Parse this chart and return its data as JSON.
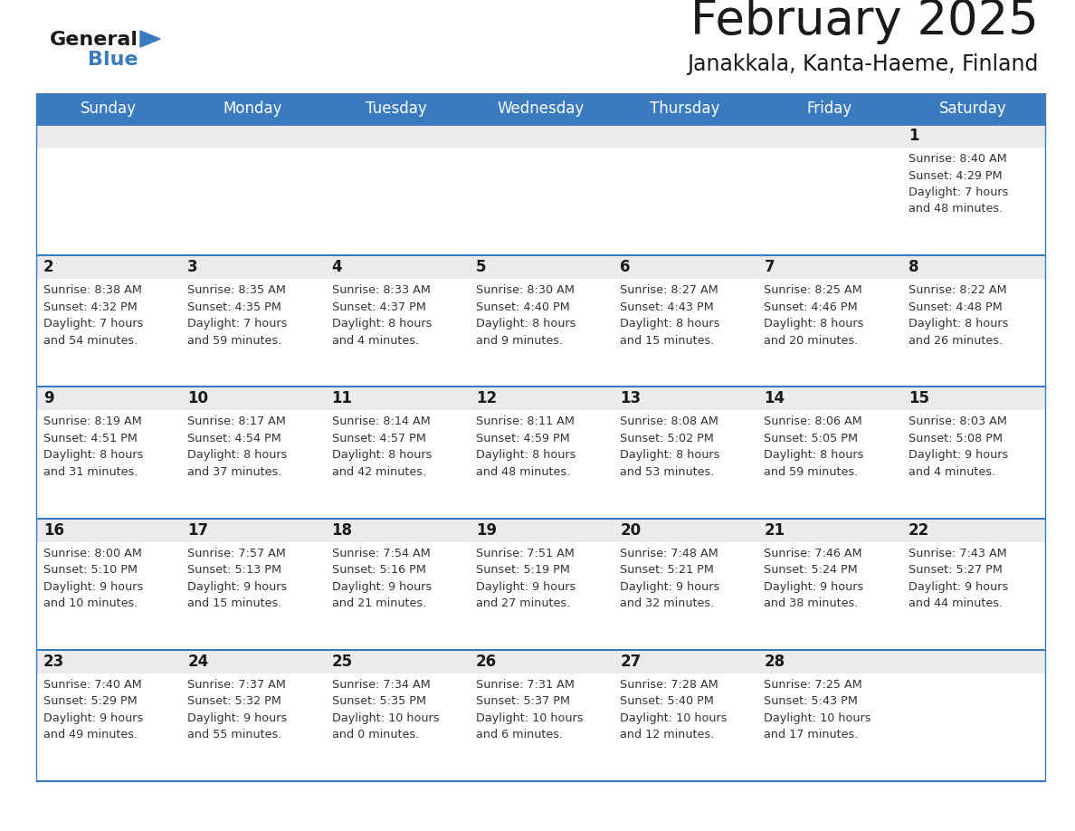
{
  "title": "February 2025",
  "subtitle": "Janakkala, Kanta-Haeme, Finland",
  "header_color": "#3a7abf",
  "header_text_color": "#ffffff",
  "day_names": [
    "Sunday",
    "Monday",
    "Tuesday",
    "Wednesday",
    "Thursday",
    "Friday",
    "Saturday"
  ],
  "title_color": "#1a1a1a",
  "subtitle_color": "#1a1a1a",
  "cell_bg_gray": "#ebebeb",
  "cell_bg_white": "#ffffff",
  "line_color": "#3a7abf",
  "day_num_color": "#1a1a1a",
  "info_color": "#333333",
  "logo_general_color": "#1a1a1a",
  "logo_blue_color": "#3a7abf",
  "weeks": [
    [
      {
        "day": null,
        "info": ""
      },
      {
        "day": null,
        "info": ""
      },
      {
        "day": null,
        "info": ""
      },
      {
        "day": null,
        "info": ""
      },
      {
        "day": null,
        "info": ""
      },
      {
        "day": null,
        "info": ""
      },
      {
        "day": 1,
        "info": "Sunrise: 8:40 AM\nSunset: 4:29 PM\nDaylight: 7 hours\nand 48 minutes."
      }
    ],
    [
      {
        "day": 2,
        "info": "Sunrise: 8:38 AM\nSunset: 4:32 PM\nDaylight: 7 hours\nand 54 minutes."
      },
      {
        "day": 3,
        "info": "Sunrise: 8:35 AM\nSunset: 4:35 PM\nDaylight: 7 hours\nand 59 minutes."
      },
      {
        "day": 4,
        "info": "Sunrise: 8:33 AM\nSunset: 4:37 PM\nDaylight: 8 hours\nand 4 minutes."
      },
      {
        "day": 5,
        "info": "Sunrise: 8:30 AM\nSunset: 4:40 PM\nDaylight: 8 hours\nand 9 minutes."
      },
      {
        "day": 6,
        "info": "Sunrise: 8:27 AM\nSunset: 4:43 PM\nDaylight: 8 hours\nand 15 minutes."
      },
      {
        "day": 7,
        "info": "Sunrise: 8:25 AM\nSunset: 4:46 PM\nDaylight: 8 hours\nand 20 minutes."
      },
      {
        "day": 8,
        "info": "Sunrise: 8:22 AM\nSunset: 4:48 PM\nDaylight: 8 hours\nand 26 minutes."
      }
    ],
    [
      {
        "day": 9,
        "info": "Sunrise: 8:19 AM\nSunset: 4:51 PM\nDaylight: 8 hours\nand 31 minutes."
      },
      {
        "day": 10,
        "info": "Sunrise: 8:17 AM\nSunset: 4:54 PM\nDaylight: 8 hours\nand 37 minutes."
      },
      {
        "day": 11,
        "info": "Sunrise: 8:14 AM\nSunset: 4:57 PM\nDaylight: 8 hours\nand 42 minutes."
      },
      {
        "day": 12,
        "info": "Sunrise: 8:11 AM\nSunset: 4:59 PM\nDaylight: 8 hours\nand 48 minutes."
      },
      {
        "day": 13,
        "info": "Sunrise: 8:08 AM\nSunset: 5:02 PM\nDaylight: 8 hours\nand 53 minutes."
      },
      {
        "day": 14,
        "info": "Sunrise: 8:06 AM\nSunset: 5:05 PM\nDaylight: 8 hours\nand 59 minutes."
      },
      {
        "day": 15,
        "info": "Sunrise: 8:03 AM\nSunset: 5:08 PM\nDaylight: 9 hours\nand 4 minutes."
      }
    ],
    [
      {
        "day": 16,
        "info": "Sunrise: 8:00 AM\nSunset: 5:10 PM\nDaylight: 9 hours\nand 10 minutes."
      },
      {
        "day": 17,
        "info": "Sunrise: 7:57 AM\nSunset: 5:13 PM\nDaylight: 9 hours\nand 15 minutes."
      },
      {
        "day": 18,
        "info": "Sunrise: 7:54 AM\nSunset: 5:16 PM\nDaylight: 9 hours\nand 21 minutes."
      },
      {
        "day": 19,
        "info": "Sunrise: 7:51 AM\nSunset: 5:19 PM\nDaylight: 9 hours\nand 27 minutes."
      },
      {
        "day": 20,
        "info": "Sunrise: 7:48 AM\nSunset: 5:21 PM\nDaylight: 9 hours\nand 32 minutes."
      },
      {
        "day": 21,
        "info": "Sunrise: 7:46 AM\nSunset: 5:24 PM\nDaylight: 9 hours\nand 38 minutes."
      },
      {
        "day": 22,
        "info": "Sunrise: 7:43 AM\nSunset: 5:27 PM\nDaylight: 9 hours\nand 44 minutes."
      }
    ],
    [
      {
        "day": 23,
        "info": "Sunrise: 7:40 AM\nSunset: 5:29 PM\nDaylight: 9 hours\nand 49 minutes."
      },
      {
        "day": 24,
        "info": "Sunrise: 7:37 AM\nSunset: 5:32 PM\nDaylight: 9 hours\nand 55 minutes."
      },
      {
        "day": 25,
        "info": "Sunrise: 7:34 AM\nSunset: 5:35 PM\nDaylight: 10 hours\nand 0 minutes."
      },
      {
        "day": 26,
        "info": "Sunrise: 7:31 AM\nSunset: 5:37 PM\nDaylight: 10 hours\nand 6 minutes."
      },
      {
        "day": 27,
        "info": "Sunrise: 7:28 AM\nSunset: 5:40 PM\nDaylight: 10 hours\nand 12 minutes."
      },
      {
        "day": 28,
        "info": "Sunrise: 7:25 AM\nSunset: 5:43 PM\nDaylight: 10 hours\nand 17 minutes."
      },
      {
        "day": null,
        "info": ""
      }
    ]
  ]
}
